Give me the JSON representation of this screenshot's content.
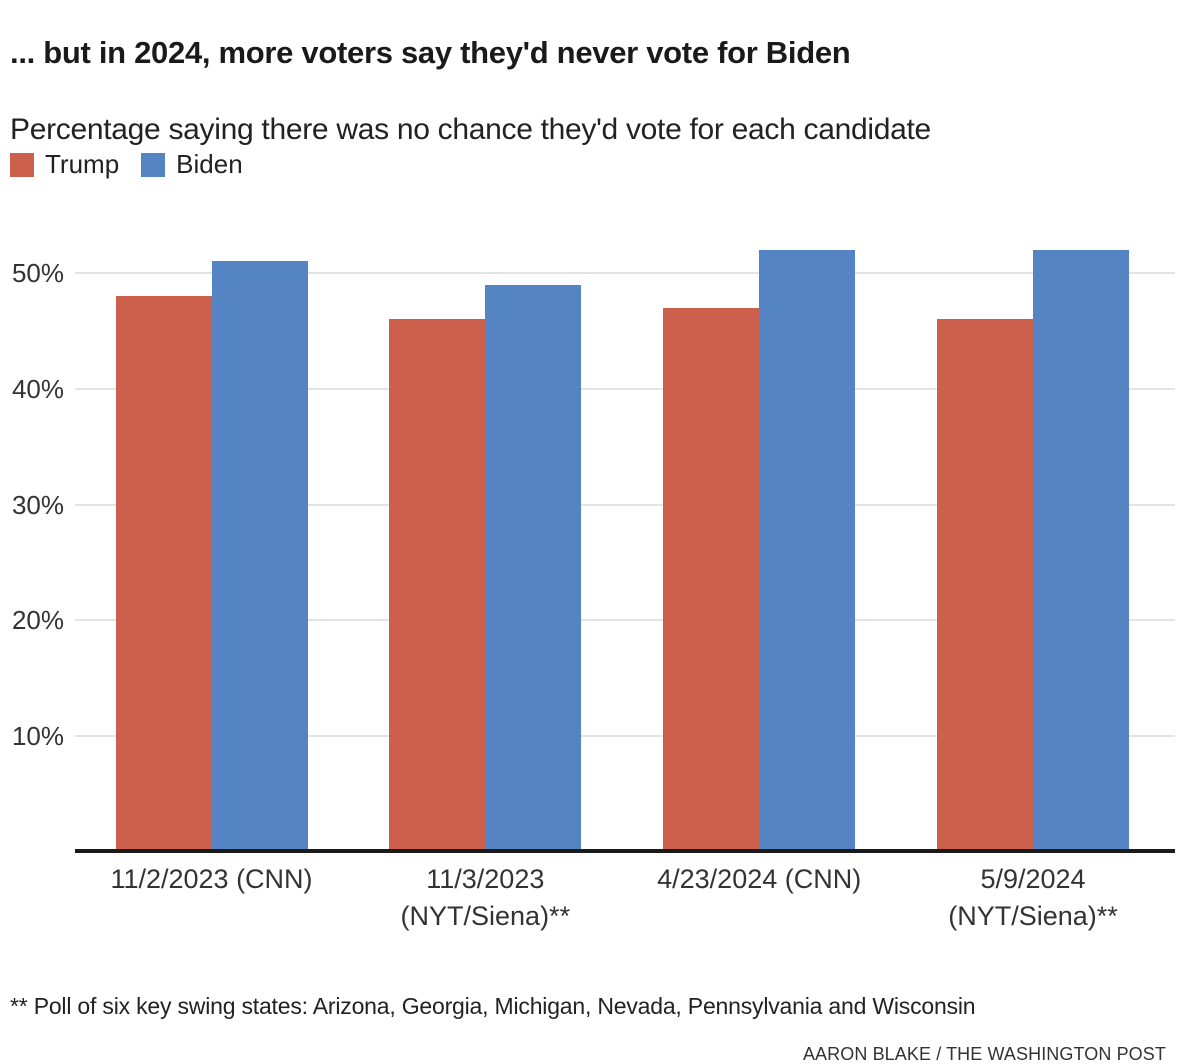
{
  "header": {
    "title": "... but in 2024, more voters say they'd never vote for Biden",
    "subtitle": "Percentage saying there was no chance they'd vote for each candidate"
  },
  "legend": {
    "items": [
      {
        "label": "Trump",
        "color": "#CD5F4D"
      },
      {
        "label": "Biden",
        "color": "#5584C4"
      }
    ]
  },
  "chart_data": {
    "type": "bar",
    "title": "... but in 2024, more voters say they'd never vote for Biden",
    "subtitle": "Percentage saying there was no chance they'd vote for each candidate",
    "categories": [
      "11/2/2023 (CNN)",
      "11/3/2023 (NYT/Siena)**",
      "4/23/2024 (CNN)",
      "5/9/2024 (NYT/Siena)**"
    ],
    "category_lines": [
      [
        "11/2/2023 (CNN)"
      ],
      [
        "11/3/2023",
        "(NYT/Siena)**"
      ],
      [
        "4/23/2024 (CNN)"
      ],
      [
        "5/9/2024",
        "(NYT/Siena)**"
      ]
    ],
    "series": [
      {
        "name": "Trump",
        "color": "#CD5F4D",
        "values": [
          48,
          46,
          47,
          46
        ]
      },
      {
        "name": "Biden",
        "color": "#5584C4",
        "values": [
          51,
          49,
          52,
          52
        ]
      }
    ],
    "xlabel": "",
    "ylabel": "",
    "ylim": [
      0,
      55
    ],
    "yticks": [
      10,
      20,
      30,
      40,
      50
    ],
    "ytick_suffix": "%",
    "grid": true,
    "legend_position": "top-left"
  },
  "footer": {
    "footnote": "** Poll of six key swing states: Arizona, Georgia, Michigan, Nevada, Pennsylvania and Wisconsin",
    "credit": "AARON BLAKE / THE WASHINGTON POST"
  },
  "colors": {
    "trump": "#CD5F4D",
    "biden": "#5584C4",
    "gridline": "#E3E3E3",
    "axis": "#1A1A1A",
    "title_text": "#1A1A1A",
    "label_text": "#333333"
  }
}
